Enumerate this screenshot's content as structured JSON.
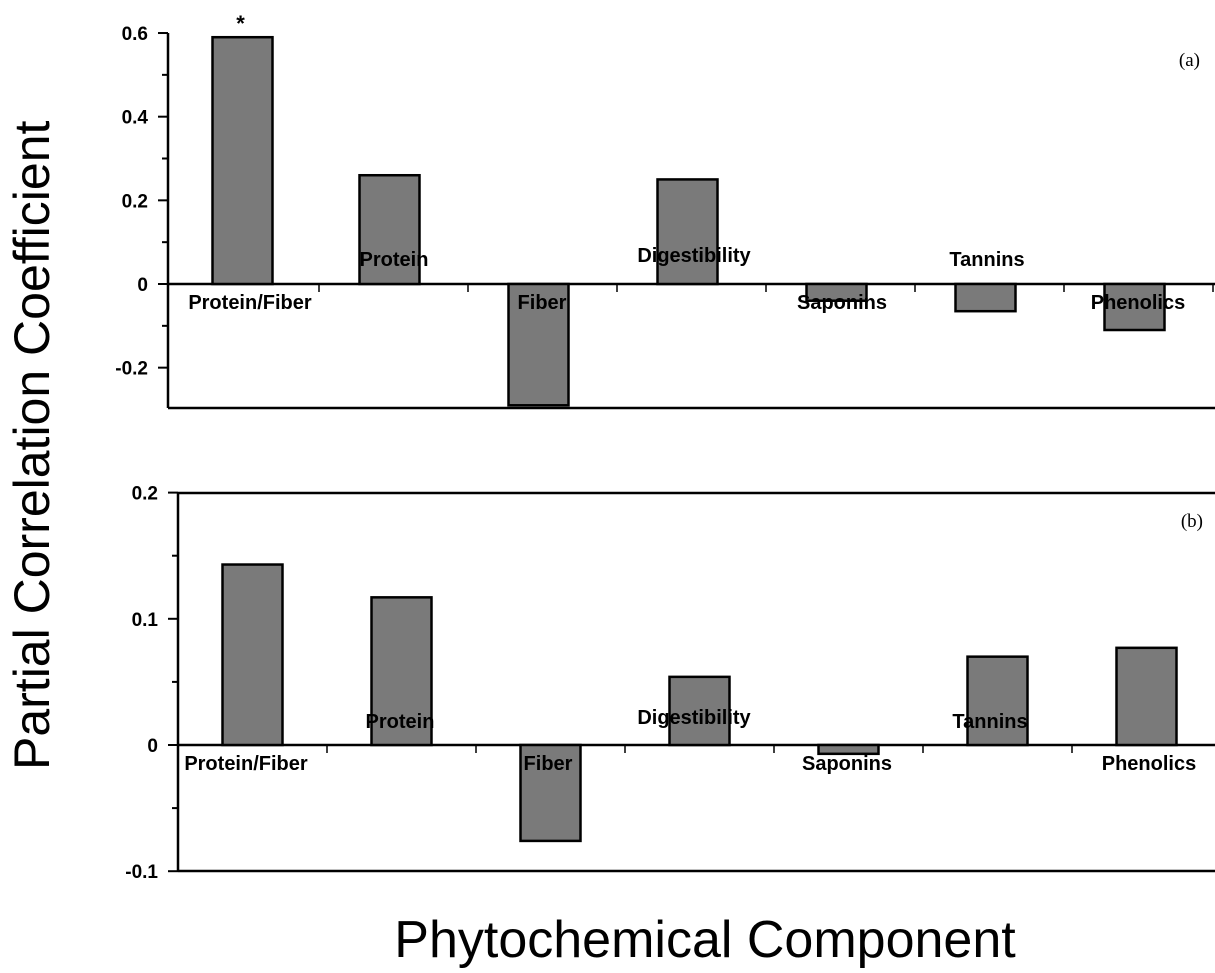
{
  "figure": {
    "ylabel": "Partial Correlation Coefficient",
    "xlabel": "Phytochemical Component"
  },
  "colors": {
    "bar_fill": "#7a7a7a",
    "bar_stroke": "#000000",
    "axis": "#000000"
  },
  "chart_data": [
    {
      "type": "bar",
      "panel_label": "(a)",
      "categories": [
        "Protein/Fiber",
        "Protein",
        "Fiber",
        "Digestibility",
        "Saponins",
        "Tannins",
        "Phenolics"
      ],
      "values": [
        0.59,
        0.26,
        -0.29,
        0.25,
        -0.04,
        -0.065,
        -0.11
      ],
      "significance": [
        "*",
        "",
        "",
        "",
        "",
        "",
        ""
      ],
      "yticks": [
        "0.6",
        "0.4",
        "0.2",
        "0",
        "-0.2"
      ],
      "ytick_values": [
        0.6,
        0.4,
        0.2,
        0,
        -0.2
      ],
      "ylim": [
        -0.29,
        0.6
      ],
      "grid": false,
      "legend": "none"
    },
    {
      "type": "bar",
      "panel_label": "(b)",
      "categories": [
        "Protein/Fiber",
        "Protein",
        "Fiber",
        "Digestibility",
        "Saponins",
        "Tannins",
        "Phenolics"
      ],
      "values": [
        0.143,
        0.117,
        -0.076,
        0.054,
        -0.007,
        0.07,
        0.077
      ],
      "significance": [
        "",
        "",
        "",
        "",
        "",
        "",
        ""
      ],
      "yticks": [
        "0.2",
        "0.1",
        "0",
        "-0.1"
      ],
      "ytick_values": [
        0.2,
        0.1,
        0,
        -0.1
      ],
      "ylim": [
        -0.1,
        0.2
      ],
      "grid": false,
      "legend": "none"
    }
  ]
}
